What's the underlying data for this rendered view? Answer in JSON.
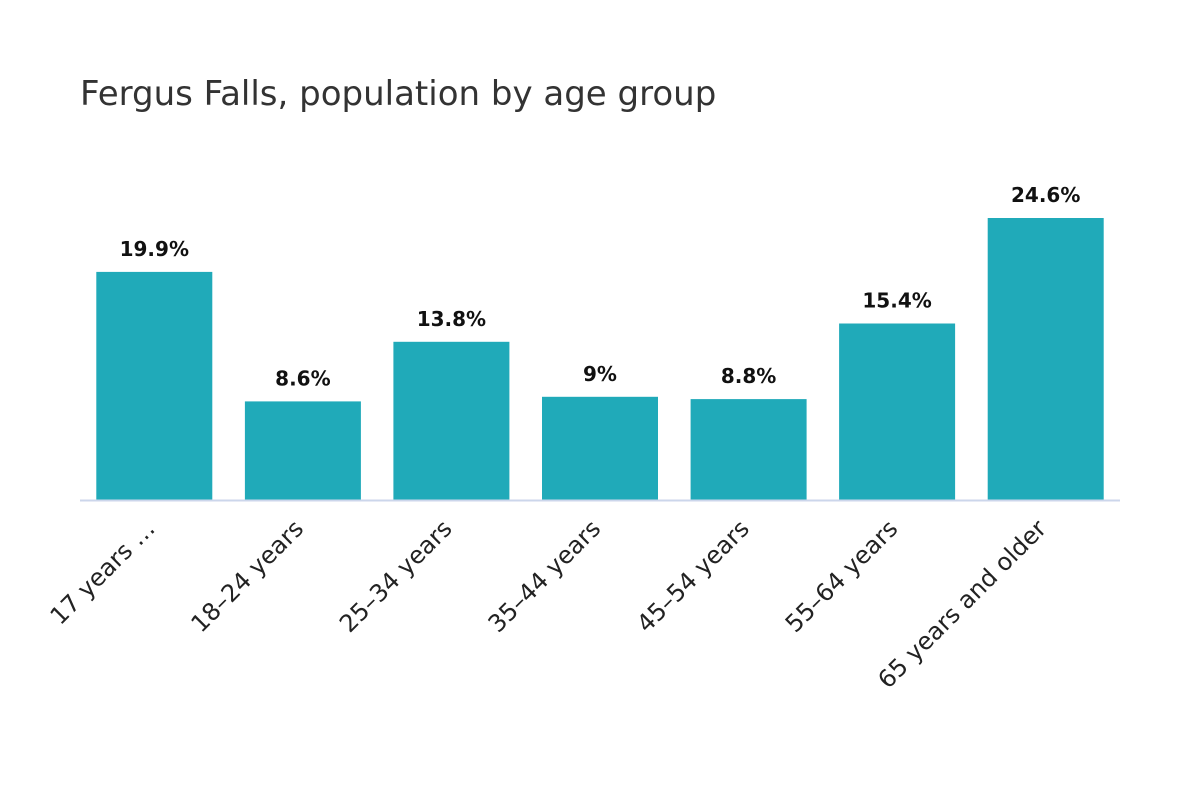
{
  "chart_data": {
    "type": "bar",
    "title": "Fergus Falls, population by age group",
    "categories": [
      "17 years …",
      "18–24 years",
      "25–34 years",
      "35–44 years",
      "45–54 years",
      "55–64 years",
      "65 years and older"
    ],
    "values": [
      19.9,
      8.6,
      13.8,
      9,
      8.8,
      15.4,
      24.6
    ],
    "data_labels": [
      "19.9%",
      "8.6%",
      "13.8%",
      "9%",
      "8.8%",
      "15.4%",
      "24.6%"
    ],
    "xlabel": "",
    "ylabel": "",
    "ylim": [
      0,
      24.6
    ],
    "grid": false,
    "legend": "none",
    "colors": {
      "bar": "#20aab9",
      "axis": "#ccd6eb"
    }
  }
}
